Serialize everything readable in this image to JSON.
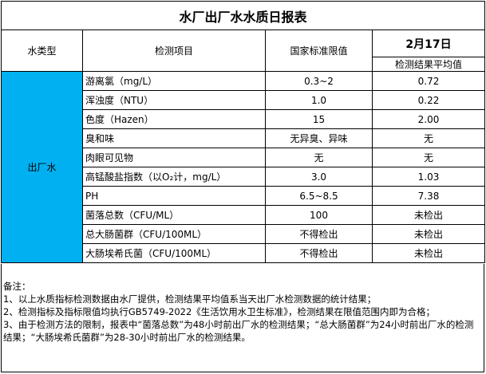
{
  "title": "水厂出厂水水质日报表",
  "headers": {
    "water_type": "水类型",
    "item": "检测项目",
    "limit": "国家标准限值",
    "date": "2月17日",
    "result": "检测结果平均值"
  },
  "water_type": "出厂水",
  "rows": [
    {
      "item": "游离氯（mg/L）",
      "limit": "0.3~2",
      "result": "0.72"
    },
    {
      "item": "浑浊度（NTU）",
      "limit": "1.0",
      "result": "0.22"
    },
    {
      "item": "色度（Hazen）",
      "limit": "15",
      "result": "2.00"
    },
    {
      "item": "臭和味",
      "limit": "无异臭、异味",
      "result": "无"
    },
    {
      "item": "肉眼可见物",
      "limit": "无",
      "result": "无"
    },
    {
      "item": "高锰酸盐指数（以O₂计，mg/L）",
      "limit": "3.0",
      "result": "1.03"
    },
    {
      "item": "PH",
      "limit": "6.5~8.5",
      "result": "7.38"
    },
    {
      "item": "菌落总数（CFU/ML）",
      "limit": "100",
      "result": "未检出"
    },
    {
      "item": "总大肠菌群（CFU/100ML）",
      "limit": "不得检出",
      "result": "未检出"
    },
    {
      "item": "大肠埃希氏菌（CFU/100ML）",
      "limit": "不得检出",
      "result": "未检出"
    }
  ],
  "notes": [
    "备注：",
    "1、以上水质指标检测数据由水厂提供，检测结果平均值系当天出厂水检测数据的统计结果；",
    "2、检测指标及指标限值均执行GB5749-2022《生活饮用水卫生标准》，检测结果在限值范围内即为合格；",
    "3、由于检测方法的限制，报表中“菌落总数”为48小时前出厂水的检测结果；“总大肠菌群”为24小时前出厂水的检测结果；“大肠埃希氏菌群”为28-30小时前出厂水的检测结果。"
  ],
  "colors": {
    "water_type_bg": "#00B0F0"
  }
}
